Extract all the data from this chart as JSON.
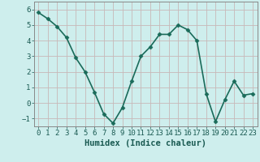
{
  "x": [
    0,
    1,
    2,
    3,
    4,
    5,
    6,
    7,
    8,
    9,
    10,
    11,
    12,
    13,
    14,
    15,
    16,
    17,
    18,
    19,
    20,
    21,
    22,
    23
  ],
  "y": [
    5.8,
    5.4,
    4.9,
    4.2,
    2.9,
    2.0,
    0.7,
    -0.7,
    -1.3,
    -0.3,
    1.4,
    3.0,
    3.6,
    4.4,
    4.4,
    5.0,
    4.7,
    4.0,
    0.6,
    -1.2,
    0.2,
    1.4,
    0.5,
    0.6
  ],
  "line_color": "#1a6b5a",
  "marker": "D",
  "marker_size": 2.5,
  "xlabel": "Humidex (Indice chaleur)",
  "ylabel": "",
  "xlim": [
    -0.5,
    23.5
  ],
  "ylim": [
    -1.5,
    6.5
  ],
  "yticks": [
    -1,
    0,
    1,
    2,
    3,
    4,
    5,
    6
  ],
  "xticks": [
    0,
    1,
    2,
    3,
    4,
    5,
    6,
    7,
    8,
    9,
    10,
    11,
    12,
    13,
    14,
    15,
    16,
    17,
    18,
    19,
    20,
    21,
    22,
    23
  ],
  "background_color": "#ceeeed",
  "grid_color": "#c8b8b8",
  "spine_color": "#888888",
  "tick_label_color": "#1a5a52",
  "xlabel_fontsize": 7.5,
  "tick_fontsize": 6.5,
  "linewidth": 1.2
}
